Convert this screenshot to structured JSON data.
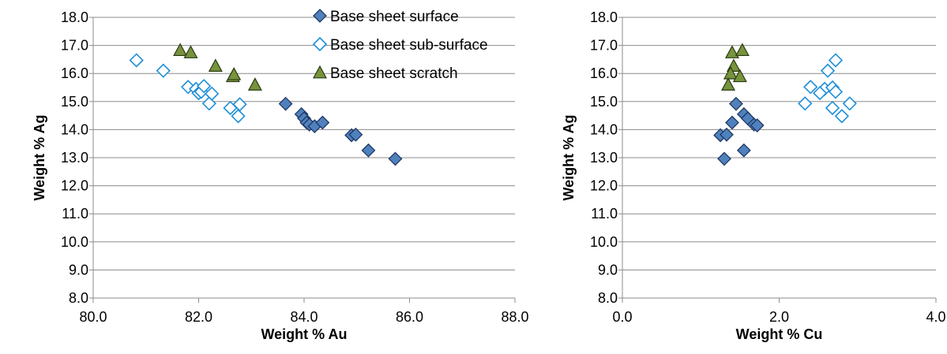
{
  "colors": {
    "surface_fill": "#4F81BD",
    "surface_stroke": "#1F3864",
    "subsurface_stroke": "#1F8FD8",
    "scratch_fill": "#77933C",
    "scratch_stroke": "#2B3A14",
    "grid": "#8C8C8C"
  },
  "legend": {
    "placement": "top-center",
    "items": [
      {
        "label": "Base sheet surface",
        "marker": "diamond-filled"
      },
      {
        "label": "Base sheet sub-surface",
        "marker": "diamond-hollow"
      },
      {
        "label": "Base sheet scratch",
        "marker": "triangle-filled"
      }
    ]
  },
  "chart_data": [
    {
      "type": "scatter",
      "xlabel": "Weight % Au",
      "ylabel": "Weight % Ag",
      "xlim": [
        80,
        88
      ],
      "ylim": [
        8,
        18
      ],
      "xticks": [
        "80.0",
        "82.0",
        "84.0",
        "86.0",
        "88.0"
      ],
      "yticks": [
        "8.0",
        "9.0",
        "10.0",
        "11.0",
        "12.0",
        "13.0",
        "14.0",
        "15.0",
        "16.0",
        "17.0",
        "18.0"
      ],
      "grid": "horizontal",
      "series": [
        {
          "name": "Base sheet surface",
          "marker": "diamond-filled",
          "points": [
            [
              83.65,
              14.92
            ],
            [
              83.95,
              14.55
            ],
            [
              84.0,
              14.4
            ],
            [
              84.05,
              14.25
            ],
            [
              84.1,
              14.18
            ],
            [
              84.2,
              14.12
            ],
            [
              84.35,
              14.25
            ],
            [
              84.9,
              13.8
            ],
            [
              84.98,
              13.82
            ],
            [
              85.22,
              13.26
            ],
            [
              85.73,
              12.96
            ]
          ]
        },
        {
          "name": "Base sheet sub-surface",
          "marker": "diamond-hollow",
          "points": [
            [
              80.82,
              16.47
            ],
            [
              81.33,
              16.1
            ],
            [
              81.8,
              15.52
            ],
            [
              81.95,
              15.45
            ],
            [
              82.0,
              15.3
            ],
            [
              82.05,
              15.35
            ],
            [
              82.1,
              15.55
            ],
            [
              82.2,
              14.93
            ],
            [
              82.25,
              15.28
            ],
            [
              82.6,
              14.77
            ],
            [
              82.75,
              14.48
            ],
            [
              82.78,
              14.9
            ]
          ]
        },
        {
          "name": "Base sheet scratch",
          "marker": "triangle-filled",
          "points": [
            [
              81.65,
              16.83
            ],
            [
              81.85,
              16.75
            ],
            [
              82.32,
              16.27
            ],
            [
              82.65,
              15.9
            ],
            [
              82.67,
              15.97
            ],
            [
              83.07,
              15.6
            ]
          ]
        }
      ]
    },
    {
      "type": "scatter",
      "xlabel": "Weight % Cu",
      "ylabel": "Weight % Ag",
      "xlim": [
        0,
        4
      ],
      "ylim": [
        8,
        18
      ],
      "xticks": [
        "0.0",
        "2.0",
        "4.0"
      ],
      "yticks": [
        "8.0",
        "9.0",
        "10.0",
        "11.0",
        "12.0",
        "13.0",
        "14.0",
        "15.0",
        "16.0",
        "17.0",
        "18.0"
      ],
      "grid": "horizontal",
      "series": [
        {
          "name": "Base sheet surface",
          "marker": "diamond-filled",
          "points": [
            [
              1.45,
              14.92
            ],
            [
              1.55,
              14.55
            ],
            [
              1.6,
              14.4
            ],
            [
              1.4,
              14.25
            ],
            [
              1.68,
              14.18
            ],
            [
              1.72,
              14.15
            ],
            [
              1.25,
              13.8
            ],
            [
              1.33,
              13.82
            ],
            [
              1.55,
              13.26
            ],
            [
              1.3,
              12.96
            ]
          ]
        },
        {
          "name": "Base sheet sub-surface",
          "marker": "diamond-hollow",
          "points": [
            [
              2.72,
              16.47
            ],
            [
              2.62,
              16.1
            ],
            [
              2.4,
              15.52
            ],
            [
              2.58,
              15.45
            ],
            [
              2.52,
              15.3
            ],
            [
              2.68,
              15.5
            ],
            [
              2.72,
              15.35
            ],
            [
              2.33,
              14.93
            ],
            [
              2.9,
              14.93
            ],
            [
              2.68,
              14.77
            ],
            [
              2.8,
              14.48
            ]
          ]
        },
        {
          "name": "Base sheet scratch",
          "marker": "triangle-filled",
          "points": [
            [
              1.4,
              16.75
            ],
            [
              1.53,
              16.83
            ],
            [
              1.42,
              16.27
            ],
            [
              1.38,
              16.0
            ],
            [
              1.5,
              15.9
            ],
            [
              1.35,
              15.6
            ]
          ]
        }
      ]
    }
  ]
}
